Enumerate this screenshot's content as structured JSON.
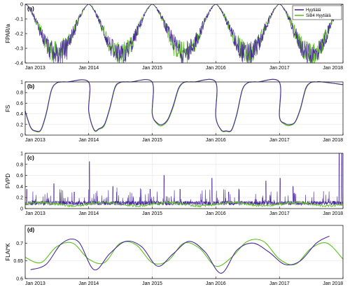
{
  "legend": {
    "placement": "top-right of panel (a)",
    "entries": [
      {
        "name": "Hyytiälä",
        "color": "#4b2a9c"
      },
      {
        "name": "SiB4 Hyytiälä",
        "color": "#5cc21e"
      }
    ]
  },
  "colors": {
    "observed": "#4b2a9c",
    "model": "#5cc21e",
    "grid": "#e6e6e6",
    "axis": "#000000"
  },
  "chart_data": [
    {
      "panel": "(a)",
      "type": "line",
      "ylabel": "FPAR/a",
      "xlim": [
        "2013-01-01",
        "2018-01-01"
      ],
      "ylim": [
        -0.4,
        0
      ],
      "yticks": [
        -0.4,
        -0.3,
        -0.2,
        -0.1,
        0
      ],
      "ytick_labels": [
        "-0.4",
        "-0.3",
        "-0.2",
        "-0.1",
        "0"
      ],
      "xtick_labels": [
        "Jan 2013",
        "Jan 2014",
        "Jan 2015",
        "Jan 2016",
        "Jan 2017",
        "Jan 2018"
      ],
      "grid": true,
      "series": [
        {
          "name": "Hyytiälä",
          "color": "#4b2a9c",
          "summer_minimum": [
            -0.34,
            -0.35,
            -0.33,
            -0.34,
            -0.35
          ],
          "spike_minimum": [
            -0.4,
            -0.4,
            -0.39,
            -0.39,
            -0.41
          ]
        },
        {
          "name": "SiB4 Hyytiälä",
          "color": "#5cc21e",
          "summer_minimum": [
            -0.33,
            -0.34,
            -0.33,
            -0.33,
            -0.34
          ],
          "spike_minimum": [
            -0.37,
            -0.37,
            -0.36,
            -0.36,
            -0.38
          ]
        }
      ]
    },
    {
      "panel": "(b)",
      "type": "line",
      "ylabel": "FS",
      "xlim": [
        "2013-01-01",
        "2018-01-01"
      ],
      "ylim": [
        0,
        1
      ],
      "yticks": [
        0,
        0.2,
        0.4,
        0.6,
        0.8,
        1
      ],
      "ytick_labels": [
        "0",
        "0.2",
        "0.4",
        "0.6",
        "0.8",
        "1"
      ],
      "xtick_labels": [
        "Jan 2013",
        "Jan 2014",
        "Jan 2015",
        "Jan 2016",
        "Jan 2017",
        "Jan 2018"
      ],
      "grid": true,
      "series": [
        {
          "name": "Hyytiälä",
          "color": "#4b2a9c",
          "x": [
            "2013-01-01",
            "2013-02-01",
            "2013-03-01",
            "2013-04-01",
            "2013-05-01",
            "2013-06-01",
            "2013-07-01",
            "2013-08-01",
            "2013-09-01",
            "2013-12-31",
            "2014-01-01",
            "2014-02-01",
            "2014-03-01",
            "2014-04-01",
            "2014-05-01",
            "2014-06-01",
            "2014-07-01",
            "2014-08-01",
            "2014-09-01",
            "2014-12-31",
            "2015-01-01",
            "2015-02-01",
            "2015-03-01",
            "2015-04-01",
            "2015-05-01",
            "2015-06-01",
            "2015-07-01",
            "2015-08-01",
            "2015-09-01",
            "2015-12-31",
            "2016-01-01",
            "2016-02-01",
            "2016-03-01",
            "2016-04-01",
            "2016-05-01",
            "2016-06-01",
            "2016-07-01",
            "2016-08-01",
            "2016-09-01",
            "2016-12-31",
            "2017-01-01",
            "2017-02-01",
            "2017-03-01",
            "2017-04-01",
            "2017-05-01",
            "2017-06-01",
            "2017-07-01",
            "2017-08-01",
            "2017-09-01",
            "2017-12-31"
          ],
          "y": [
            0.45,
            0.15,
            0.08,
            0.1,
            0.4,
            0.85,
            0.98,
            1.0,
            1.0,
            1.0,
            0.45,
            0.1,
            0.12,
            0.2,
            0.5,
            0.9,
            0.99,
            1.0,
            1.0,
            1.0,
            0.4,
            0.22,
            0.2,
            0.3,
            0.55,
            0.88,
            0.99,
            1.0,
            1.0,
            1.0,
            0.35,
            0.1,
            0.08,
            0.1,
            0.4,
            0.85,
            0.98,
            1.0,
            1.0,
            1.0,
            0.35,
            0.22,
            0.2,
            0.25,
            0.5,
            0.88,
            0.99,
            1.0,
            1.0,
            0.95
          ]
        },
        {
          "name": "SiB4 Hyytiälä",
          "color": "#5cc21e",
          "x": [
            "2013-01-01",
            "2013-02-01",
            "2013-03-01",
            "2013-04-01",
            "2013-05-01",
            "2013-06-01",
            "2013-07-01",
            "2013-08-01",
            "2013-09-01",
            "2013-12-31",
            "2014-01-01",
            "2014-02-01",
            "2014-03-01",
            "2014-04-01",
            "2014-05-01",
            "2014-06-01",
            "2014-07-01",
            "2014-08-01",
            "2014-09-01",
            "2014-12-31",
            "2015-01-01",
            "2015-02-01",
            "2015-03-01",
            "2015-04-01",
            "2015-05-01",
            "2015-06-01",
            "2015-07-01",
            "2015-08-01",
            "2015-09-01",
            "2015-12-31",
            "2016-01-01",
            "2016-02-01",
            "2016-03-01",
            "2016-04-01",
            "2016-05-01",
            "2016-06-01",
            "2016-07-01",
            "2016-08-01",
            "2016-09-01",
            "2016-12-31",
            "2017-01-01",
            "2017-02-01",
            "2017-03-01",
            "2017-04-01",
            "2017-05-01",
            "2017-06-01",
            "2017-07-01",
            "2017-08-01",
            "2017-09-01",
            "2017-12-31"
          ],
          "y": [
            0.45,
            0.14,
            0.07,
            0.09,
            0.38,
            0.84,
            0.98,
            1.0,
            1.0,
            1.0,
            0.45,
            0.09,
            0.11,
            0.18,
            0.48,
            0.88,
            0.99,
            1.0,
            1.0,
            1.0,
            0.4,
            0.2,
            0.18,
            0.28,
            0.52,
            0.86,
            0.99,
            1.0,
            1.0,
            1.0,
            0.35,
            0.09,
            0.07,
            0.09,
            0.38,
            0.84,
            0.98,
            1.0,
            1.0,
            1.0,
            0.35,
            0.2,
            0.18,
            0.24,
            0.48,
            0.86,
            0.99,
            1.0,
            1.0,
            0.95
          ]
        }
      ]
    },
    {
      "panel": "(c)",
      "type": "line",
      "ylabel": "FVPD",
      "xlim": [
        "2013-01-01",
        "2018-01-01"
      ],
      "ylim": [
        0,
        1
      ],
      "yticks": [
        0,
        0.2,
        0.4,
        0.6,
        0.8,
        1
      ],
      "ytick_labels": [
        "0",
        "0.2",
        "0.4",
        "0.6",
        "0.8",
        "1"
      ],
      "xtick_labels": [
        "Jan 2013",
        "Jan 2014",
        "Jan 2015",
        "Jan 2016",
        "Jan 2017",
        "Jan 2018"
      ],
      "grid": true,
      "series": [
        {
          "name": "Hyytiälä",
          "color": "#4b2a9c",
          "baseline": 0.1,
          "peaks": [
            {
              "x": "2013-01-10",
              "y": 0.35
            },
            {
              "x": "2013-06-15",
              "y": 0.45
            },
            {
              "x": "2013-10-10",
              "y": 0.3
            },
            {
              "x": "2014-01-05",
              "y": 0.85
            },
            {
              "x": "2014-05-20",
              "y": 0.4
            },
            {
              "x": "2014-12-20",
              "y": 0.35
            },
            {
              "x": "2015-03-10",
              "y": 0.6
            },
            {
              "x": "2015-06-10",
              "y": 0.35
            },
            {
              "x": "2015-12-10",
              "y": 0.55
            },
            {
              "x": "2016-03-15",
              "y": 0.3
            },
            {
              "x": "2016-10-15",
              "y": 0.5
            },
            {
              "x": "2017-01-05",
              "y": 0.55
            },
            {
              "x": "2017-03-20",
              "y": 0.4
            },
            {
              "x": "2017-12-10",
              "y": 1.0
            },
            {
              "x": "2017-12-25",
              "y": 1.0
            }
          ]
        },
        {
          "name": "SiB4 Hyytiälä",
          "color": "#5cc21e",
          "baseline": 0.08,
          "max": 0.2
        }
      ]
    },
    {
      "panel": "(d)",
      "type": "line",
      "ylabel": "FLAI*K",
      "xlim": [
        "2013-01-01",
        "2018-01-01"
      ],
      "ylim": [
        0.6,
        0.75
      ],
      "yticks": [
        0.6,
        0.65,
        0.7
      ],
      "ytick_labels": [
        "0.6",
        "0.65",
        "0.7"
      ],
      "xtick_labels": [
        "Jan 2013",
        "Jan 2014",
        "Jan 2015",
        "Jan 2016",
        "Jan 2017",
        "Jan 2018"
      ],
      "grid": true,
      "series": [
        {
          "name": "Hyytiälä",
          "color": "#4b2a9c",
          "x": [
            "2013-02-01",
            "2013-05-01",
            "2013-08-01",
            "2013-11-01",
            "2014-02-01",
            "2014-05-01",
            "2014-08-01",
            "2014-11-01",
            "2015-02-01",
            "2015-05-01",
            "2015-08-01",
            "2015-11-01",
            "2016-02-01",
            "2016-05-01",
            "2016-08-01",
            "2016-11-01",
            "2017-02-01",
            "2017-05-01",
            "2017-08-01",
            "2017-10-15"
          ],
          "y": [
            0.625,
            0.64,
            0.7,
            0.705,
            0.625,
            0.67,
            0.705,
            0.69,
            0.635,
            0.67,
            0.705,
            0.675,
            0.615,
            0.68,
            0.7,
            0.675,
            0.64,
            0.65,
            0.7,
            0.72
          ]
        },
        {
          "name": "SiB4 Hyytiälä",
          "color": "#5cc21e",
          "x": [
            "2013-01-01",
            "2013-04-01",
            "2013-07-01",
            "2013-10-01",
            "2014-01-01",
            "2014-04-01",
            "2014-07-01",
            "2014-10-01",
            "2015-01-01",
            "2015-04-01",
            "2015-07-01",
            "2015-10-01",
            "2016-01-01",
            "2016-04-01",
            "2016-07-01",
            "2016-10-01",
            "2017-01-01",
            "2017-04-01",
            "2017-07-01",
            "2017-10-01",
            "2018-01-01"
          ],
          "y": [
            0.66,
            0.645,
            0.69,
            0.7,
            0.655,
            0.645,
            0.7,
            0.695,
            0.645,
            0.65,
            0.7,
            0.685,
            0.635,
            0.66,
            0.705,
            0.705,
            0.655,
            0.64,
            0.685,
            0.7,
            0.655
          ]
        }
      ]
    }
  ]
}
